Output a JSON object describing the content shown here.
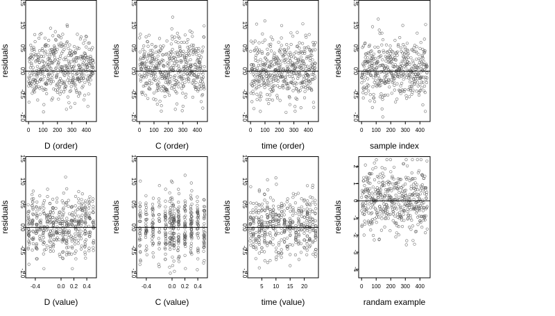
{
  "chart_data": [
    {
      "type": "scatter",
      "xlabel": "D (order)",
      "ylabel": "residuals",
      "xlim": [
        -20,
        470
      ],
      "ylim": [
        -1.1,
        1.55
      ],
      "xticks": [
        0,
        100,
        200,
        300,
        400
      ],
      "yticks": [
        -1.0,
        -0.5,
        0.0,
        0.5,
        1.0,
        1.5
      ],
      "xtick_labels": [
        "0",
        "100",
        "200",
        "300",
        "400"
      ],
      "ytick_labels": [
        "-1.0",
        "-0.5",
        "0.0",
        "0.5",
        "1.0",
        "1.5"
      ],
      "reference_line_y": 0,
      "point_pattern": {
        "n": 450,
        "xmin": 0,
        "xmax": 450,
        "mode": "order",
        "mean": 0.05,
        "sd": 0.33,
        "min": -0.9,
        "max": 1.5,
        "seed": 11
      }
    },
    {
      "type": "scatter",
      "xlabel": "C (order)",
      "ylabel": "residuals",
      "xlim": [
        -20,
        470
      ],
      "ylim": [
        -1.1,
        1.55
      ],
      "xticks": [
        0,
        100,
        200,
        300,
        400
      ],
      "yticks": [
        -1.0,
        -0.5,
        0.0,
        0.5,
        1.0,
        1.5
      ],
      "xtick_labels": [
        "0",
        "100",
        "200",
        "300",
        "400"
      ],
      "ytick_labels": [
        "-1.0",
        "-0.5",
        "0.0",
        "0.5",
        "1.0",
        "1.5"
      ],
      "reference_line_y": 0,
      "point_pattern": {
        "n": 450,
        "xmin": 0,
        "xmax": 450,
        "mode": "order",
        "mean": 0.03,
        "sd": 0.35,
        "min": -1.0,
        "max": 1.5,
        "seed": 23
      }
    },
    {
      "type": "scatter",
      "xlabel": "time (order)",
      "ylabel": "residuals",
      "xlim": [
        -20,
        470
      ],
      "ylim": [
        -1.1,
        1.55
      ],
      "xticks": [
        0,
        100,
        200,
        300,
        400
      ],
      "yticks": [
        -1.0,
        -0.5,
        0.0,
        0.5,
        1.0,
        1.5
      ],
      "xtick_labels": [
        "0",
        "100",
        "200",
        "300",
        "400"
      ],
      "ytick_labels": [
        "-1.0",
        "-0.5",
        "0.0",
        "0.5",
        "1.0",
        "1.5"
      ],
      "reference_line_y": 0,
      "point_pattern": {
        "n": 450,
        "xmin": 0,
        "xmax": 450,
        "mode": "order",
        "mean": 0.04,
        "sd": 0.34,
        "min": -1.0,
        "max": 1.5,
        "seed": 37
      }
    },
    {
      "type": "scatter",
      "xlabel": "sample index",
      "ylabel": "residuals",
      "xlim": [
        -20,
        470
      ],
      "ylim": [
        -1.1,
        1.55
      ],
      "xticks": [
        0,
        100,
        200,
        300,
        400
      ],
      "yticks": [
        -1.0,
        -0.5,
        0.0,
        0.5,
        1.0,
        1.5
      ],
      "xtick_labels": [
        "0",
        "100",
        "200",
        "300",
        "400"
      ],
      "ytick_labels": [
        "-1.0",
        "-0.5",
        "0.0",
        "0.5",
        "1.0",
        "1.5"
      ],
      "reference_line_y": 0,
      "point_pattern": {
        "n": 450,
        "xmin": 0,
        "xmax": 450,
        "mode": "order",
        "mean": 0.05,
        "sd": 0.33,
        "min": -1.0,
        "max": 1.5,
        "seed": 41
      }
    },
    {
      "type": "scatter",
      "xlabel": "D (value)",
      "ylabel": "residuals",
      "xlim": [
        -0.55,
        0.55
      ],
      "ylim": [
        -1.1,
        1.55
      ],
      "xticks": [
        -0.4,
        0.0,
        0.2,
        0.4
      ],
      "yticks": [
        -1.0,
        -0.5,
        0.0,
        0.5,
        1.0,
        1.5
      ],
      "xtick_labels": [
        "-0.4",
        "0.0",
        "0.2",
        "0.4"
      ],
      "ytick_labels": [
        "-1.0",
        "-0.5",
        "0.0",
        "0.5",
        "1.0",
        "1.5"
      ],
      "reference_line_y": 0,
      "point_pattern": {
        "n": 450,
        "mode": "value",
        "levels": [
          -0.5,
          -0.44,
          -0.38,
          -0.32,
          -0.27,
          -0.22,
          -0.17,
          -0.12,
          -0.07,
          -0.02,
          0.03,
          0.08,
          0.12,
          0.17,
          0.22,
          0.27,
          0.32,
          0.38,
          0.44,
          0.5
        ],
        "jitter": 0.012,
        "mean": 0.03,
        "sd": 0.33,
        "min": -0.9,
        "max": 1.5,
        "seed": 53
      }
    },
    {
      "type": "scatter",
      "xlabel": "C (value)",
      "ylabel": "residuals",
      "xlim": [
        -0.55,
        0.55
      ],
      "ylim": [
        -1.1,
        1.55
      ],
      "xticks": [
        -0.4,
        0.0,
        0.2,
        0.4
      ],
      "yticks": [
        -1.0,
        -0.5,
        0.0,
        0.5,
        1.0,
        1.5
      ],
      "xtick_labels": [
        "-0.4",
        "0.0",
        "0.2",
        "0.4"
      ],
      "ytick_labels": [
        "-1.0",
        "-0.5",
        "0.0",
        "0.5",
        "1.0",
        "1.5"
      ],
      "reference_line_y": 0,
      "point_pattern": {
        "n": 450,
        "mode": "value",
        "levels": [
          -0.5,
          -0.4,
          -0.3,
          -0.2,
          -0.1,
          -0.03,
          0.0,
          0.03,
          0.1,
          0.2,
          0.3,
          0.4,
          0.5
        ],
        "jitter": 0.01,
        "mean": 0.02,
        "sd": 0.35,
        "min": -1.0,
        "max": 1.5,
        "seed": 67
      }
    },
    {
      "type": "scatter",
      "xlabel": "time (value)",
      "ylabel": "residuals",
      "xlim": [
        0,
        25
      ],
      "ylim": [
        -1.1,
        1.55
      ],
      "xticks": [
        5,
        10,
        15,
        20
      ],
      "yticks": [
        -1.0,
        -0.5,
        0.0,
        0.5,
        1.0,
        1.5
      ],
      "xtick_labels": [
        "5",
        "10",
        "15",
        "20"
      ],
      "ytick_labels": [
        "-1.0",
        "-0.5",
        "0.0",
        "0.5",
        "1.0",
        "1.5"
      ],
      "reference_line_y": 0,
      "point_pattern": {
        "n": 450,
        "mode": "value",
        "levels": [
          1,
          2,
          3,
          4,
          5,
          6,
          7,
          8,
          9,
          10,
          11,
          12,
          13,
          14,
          15,
          16,
          17,
          18,
          19,
          20,
          21,
          22,
          23,
          24
        ],
        "jitter": 0.15,
        "mean": 0.04,
        "sd": 0.34,
        "min": -1.0,
        "max": 1.5,
        "seed": 79
      }
    },
    {
      "type": "scatter",
      "xlabel": "randam example",
      "ylabel": "residuals",
      "xlim": [
        -20,
        470
      ],
      "ylim": [
        -4.5,
        2.6
      ],
      "xticks": [
        0,
        100,
        200,
        300,
        400
      ],
      "yticks": [
        -4,
        -3,
        -2,
        -1,
        0,
        1,
        2
      ],
      "xtick_labels": [
        "0",
        "100",
        "200",
        "300",
        "400"
      ],
      "ytick_labels": [
        "-4",
        "-3",
        "-2",
        "-1",
        "0",
        "1",
        "2"
      ],
      "reference_line_y": 0,
      "point_pattern": {
        "n": 450,
        "xmin": 0,
        "xmax": 450,
        "mode": "order",
        "mean": 0.0,
        "sd": 1.0,
        "min": -4.4,
        "max": 2.4,
        "seed": 97
      }
    }
  ]
}
